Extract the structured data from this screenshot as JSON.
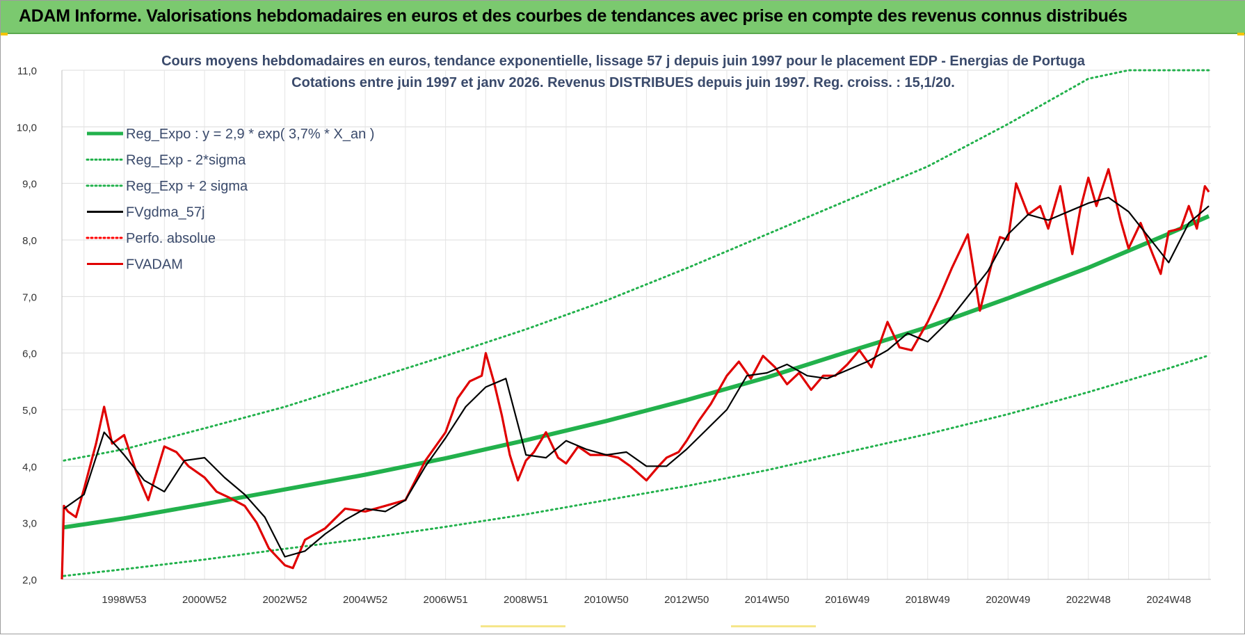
{
  "banner": {
    "title": "ADAM Informe. Valorisations hebdomadaires en euros et des courbes de tendances avec prise en compte des revenus connus distribués"
  },
  "colors": {
    "banner": "#7bc96f",
    "reg_expo": "#22b14c",
    "sigma": "#22b14c",
    "fvgdma": "#000000",
    "perfo": "#ff0000",
    "fvadam": "#e00000"
  },
  "chart_data": {
    "type": "line",
    "title": "Cours moyens hebdomadaires en euros, tendance exponentielle, lissage 57 j depuis juin 1997 pour le placement EDP - Energias de Portuga",
    "subtitle": "Cotations entre juin 1997 et janv 2026. Revenus DISTRIBUES depuis juin 1997. Reg. croiss. : 15,1/20.",
    "xlabel": "",
    "ylabel": "",
    "xlim": [
      1997.45,
      2026.05
    ],
    "ylim": [
      2.0,
      11.0
    ],
    "y_ticks": [
      "2,0",
      "3,0",
      "4,0",
      "5,0",
      "6,0",
      "7,0",
      "8,0",
      "9,0",
      "10,0",
      "11,0"
    ],
    "x_ticks": [
      {
        "label": "1998W53",
        "x": 1999.0
      },
      {
        "label": "2000W52",
        "x": 2001.0
      },
      {
        "label": "2002W52",
        "x": 2003.0
      },
      {
        "label": "2004W52",
        "x": 2005.0
      },
      {
        "label": "2006W51",
        "x": 2007.0
      },
      {
        "label": "2008W51",
        "x": 2009.0
      },
      {
        "label": "2010W50",
        "x": 2011.0
      },
      {
        "label": "2012W50",
        "x": 2013.0
      },
      {
        "label": "2014W50",
        "x": 2015.0
      },
      {
        "label": "2016W49",
        "x": 2017.0
      },
      {
        "label": "2018W49",
        "x": 2019.0
      },
      {
        "label": "2020W49",
        "x": 2021.0
      },
      {
        "label": "2022W48",
        "x": 2023.0
      },
      {
        "label": "2024W48",
        "x": 2025.0
      }
    ],
    "grid": true,
    "legend_position": "top-left",
    "legend": [
      {
        "label": "Reg_Expo : y = 2,9 * exp( 3,7% *  X_an )",
        "style": "thick",
        "color": "#22b14c"
      },
      {
        "label": "Reg_Exp - 2*sigma",
        "style": "dotted",
        "color": "#22b14c"
      },
      {
        "label": "Reg_Exp + 2 sigma",
        "style": "dotted",
        "color": "#22b14c"
      },
      {
        "label": "FVgdma_57j",
        "style": "solid",
        "color": "#000000"
      },
      {
        "label": "Perfo. absolue",
        "style": "dotted",
        "color": "#ff0000"
      },
      {
        "label": "FVADAM",
        "style": "solid",
        "color": "#e00000"
      }
    ],
    "series": [
      {
        "name": "Reg_Expo : y = 2,9 * exp( 3,7% *  X_an )",
        "x": [
          1997.5,
          1999,
          2001,
          2003,
          2005,
          2007,
          2009,
          2011,
          2013,
          2015,
          2017,
          2019,
          2021,
          2023,
          2025,
          2026
        ],
        "y": [
          2.92,
          3.08,
          3.33,
          3.59,
          3.85,
          4.14,
          4.46,
          4.8,
          5.17,
          5.57,
          6.02,
          6.46,
          6.97,
          7.51,
          8.11,
          8.42
        ]
      },
      {
        "name": "Reg_Exp - 2*sigma",
        "x": [
          1997.5,
          1999,
          2001,
          2003,
          2005,
          2007,
          2009,
          2011,
          2013,
          2015,
          2017,
          2019,
          2021,
          2023,
          2025,
          2026
        ],
        "y": [
          2.06,
          2.18,
          2.35,
          2.54,
          2.72,
          2.93,
          3.15,
          3.4,
          3.65,
          3.93,
          4.25,
          4.57,
          4.92,
          5.31,
          5.73,
          5.96
        ]
      },
      {
        "name": "Reg_Exp + 2 sigma",
        "x": [
          1997.5,
          1999,
          2001,
          2003,
          2005,
          2007,
          2009,
          2011,
          2013,
          2015,
          2017,
          2019,
          2021,
          2023,
          2024,
          2025,
          2026
        ],
        "y": [
          4.1,
          4.3,
          4.67,
          5.05,
          5.5,
          5.95,
          6.42,
          6.93,
          7.5,
          8.1,
          8.7,
          9.3,
          10.05,
          10.85,
          11.0,
          11.0,
          11.0
        ]
      },
      {
        "name": "FVgdma_57j",
        "x": [
          1997.5,
          1998.0,
          1998.5,
          1999.0,
          1999.5,
          2000.0,
          2000.5,
          2001.0,
          2001.5,
          2002.0,
          2002.5,
          2003.0,
          2003.5,
          2004.0,
          2004.5,
          2005.0,
          2005.5,
          2006.0,
          2006.5,
          2007.0,
          2007.5,
          2008.0,
          2008.5,
          2009.0,
          2009.5,
          2010.0,
          2010.5,
          2011.0,
          2011.5,
          2012.0,
          2012.5,
          2013.0,
          2013.5,
          2014.0,
          2014.5,
          2015.0,
          2015.5,
          2016.0,
          2016.5,
          2017.0,
          2017.5,
          2018.0,
          2018.5,
          2019.0,
          2019.5,
          2020.0,
          2020.5,
          2021.0,
          2021.5,
          2022.0,
          2022.5,
          2023.0,
          2023.5,
          2024.0,
          2024.5,
          2025.0,
          2025.5,
          2026.0
        ],
        "y": [
          3.25,
          3.5,
          4.6,
          4.2,
          3.75,
          3.55,
          4.1,
          4.15,
          3.8,
          3.5,
          3.1,
          2.4,
          2.5,
          2.8,
          3.05,
          3.25,
          3.2,
          3.4,
          4.0,
          4.5,
          5.05,
          5.4,
          5.55,
          4.2,
          4.15,
          4.45,
          4.3,
          4.2,
          4.25,
          4.0,
          4.0,
          4.3,
          4.65,
          5.0,
          5.6,
          5.65,
          5.8,
          5.6,
          5.55,
          5.7,
          5.85,
          6.05,
          6.35,
          6.2,
          6.55,
          7.0,
          7.45,
          8.1,
          8.45,
          8.35,
          8.5,
          8.65,
          8.75,
          8.5,
          8.05,
          7.6,
          8.3,
          8.6
        ]
      },
      {
        "name": "FVADAM",
        "x": [
          1997.45,
          1997.5,
          1997.6,
          1997.8,
          1998.0,
          1998.3,
          1998.5,
          1998.7,
          1999.0,
          1999.3,
          1999.6,
          2000.0,
          2000.3,
          2000.6,
          2001.0,
          2001.3,
          2001.6,
          2002.0,
          2002.3,
          2002.6,
          2003.0,
          2003.2,
          2003.5,
          2004.0,
          2004.5,
          2005.0,
          2005.5,
          2006.0,
          2006.5,
          2007.0,
          2007.3,
          2007.6,
          2007.9,
          2008.0,
          2008.2,
          2008.4,
          2008.6,
          2008.8,
          2009.0,
          2009.2,
          2009.5,
          2009.8,
          2010.0,
          2010.3,
          2010.6,
          2011.0,
          2011.3,
          2011.6,
          2012.0,
          2012.3,
          2012.5,
          2012.8,
          2013.0,
          2013.3,
          2013.6,
          2014.0,
          2014.3,
          2014.6,
          2014.9,
          2015.2,
          2015.5,
          2015.8,
          2016.1,
          2016.4,
          2016.7,
          2017.0,
          2017.3,
          2017.6,
          2018.0,
          2018.3,
          2018.6,
          2019.0,
          2019.3,
          2019.6,
          2020.0,
          2020.3,
          2020.6,
          2020.8,
          2021.0,
          2021.2,
          2021.5,
          2021.8,
          2022.0,
          2022.3,
          2022.6,
          2022.8,
          2023.0,
          2023.2,
          2023.5,
          2023.8,
          2024.0,
          2024.3,
          2024.6,
          2024.8,
          2025.0,
          2025.3,
          2025.5,
          2025.7,
          2025.9,
          2026.0
        ],
        "y": [
          2.0,
          3.3,
          3.2,
          3.1,
          3.6,
          4.4,
          5.05,
          4.4,
          4.55,
          3.9,
          3.4,
          4.35,
          4.25,
          4.0,
          3.8,
          3.55,
          3.45,
          3.3,
          3.0,
          2.55,
          2.25,
          2.2,
          2.7,
          2.9,
          3.25,
          3.2,
          3.3,
          3.4,
          4.1,
          4.6,
          5.2,
          5.5,
          5.6,
          6.0,
          5.5,
          4.9,
          4.2,
          3.75,
          4.1,
          4.25,
          4.6,
          4.15,
          4.05,
          4.35,
          4.2,
          4.2,
          4.15,
          4.0,
          3.75,
          4.0,
          4.15,
          4.25,
          4.45,
          4.8,
          5.1,
          5.6,
          5.85,
          5.55,
          5.95,
          5.75,
          5.45,
          5.65,
          5.35,
          5.6,
          5.6,
          5.8,
          6.05,
          5.75,
          6.55,
          6.1,
          6.05,
          6.55,
          7.0,
          7.5,
          8.1,
          6.75,
          7.6,
          8.05,
          8.0,
          9.0,
          8.45,
          8.6,
          8.2,
          8.95,
          7.75,
          8.55,
          9.1,
          8.6,
          9.25,
          8.35,
          7.85,
          8.3,
          7.75,
          7.4,
          8.15,
          8.2,
          8.6,
          8.2,
          8.95,
          8.85
        ]
      }
    ]
  }
}
